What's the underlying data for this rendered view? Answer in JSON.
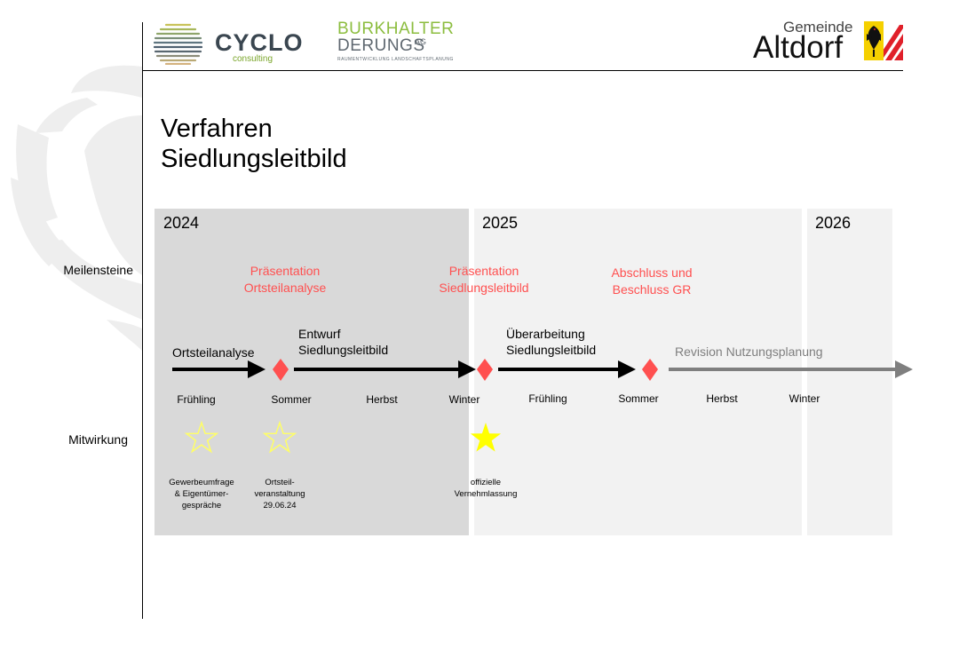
{
  "header": {
    "cyclo": {
      "name": "CYCLO",
      "sub": "consulting"
    },
    "burkhalter": {
      "line1": "BURKHALTER",
      "line2": "DERUNGS",
      "ag": "AG",
      "sub": "RAUMENTWICKLUNG  LANDSCHAFTSPLANUNG"
    },
    "altdorf": {
      "small": "Gemeinde",
      "big": "Altdorf"
    }
  },
  "title": {
    "line1": "Verfahren",
    "line2": "Siedlungsleitbild"
  },
  "years": [
    "2024",
    "2025",
    "2026"
  ],
  "rows": {
    "milestones": "Meilensteine",
    "participation": "Mitwirkung"
  },
  "milestones": [
    {
      "line1": "Präsentation",
      "line2": "Ortsteilanalyse"
    },
    {
      "line1": "Präsentation",
      "line2": "Siedlungsleitbild"
    },
    {
      "line1": "Abschluss und",
      "line2": "Beschluss GR"
    }
  ],
  "phases": [
    {
      "line1": "Ortsteilanalyse"
    },
    {
      "line1": "Entwurf",
      "line2": "Siedlungsleitbild"
    },
    {
      "line1": "Überarbeitung",
      "line2": "Siedlungsleitbild"
    },
    {
      "line1": "Revision Nutzungsplanung"
    }
  ],
  "seasons": [
    "Frühling",
    "Sommer",
    "Herbst",
    "Winter",
    "Frühling",
    "Sommer",
    "Herbst",
    "Winter"
  ],
  "participation": [
    {
      "lines": [
        "Gewerbeumfrage",
        "& Eigentümer-",
        "gespräche"
      ],
      "filled": false
    },
    {
      "lines": [
        "Ortsteil-",
        "veranstaltung",
        "29.06.24"
      ],
      "filled": false
    },
    {
      "lines": [
        "offizielle",
        "Vernehmlassung"
      ],
      "filled": true
    }
  ],
  "colors": {
    "milestone": "#ff5050",
    "star": "#ffff00",
    "star_outline": "#ffff66",
    "arrow": "#000000",
    "arrow_future": "#7f7f7f",
    "band_2024": "#d9d9d9",
    "band_future": "#f2f2f2"
  }
}
